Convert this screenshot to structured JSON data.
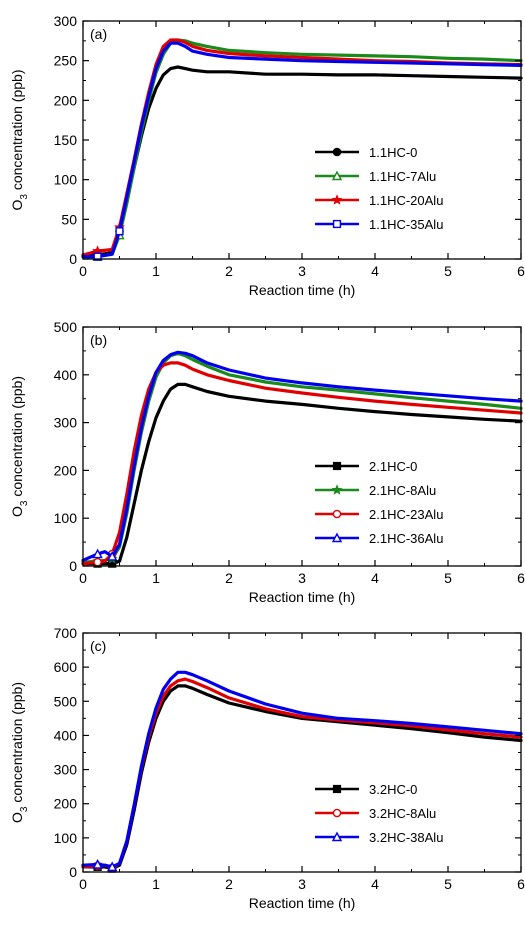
{
  "chart_data": [
    {
      "type": "line",
      "panel_label": "(a)",
      "xlabel": "Reaction time (h)",
      "ylabel_main": "O",
      "ylabel_sub": "3",
      "ylabel_rest": " concentration (ppb)",
      "xlim": [
        0,
        6
      ],
      "ylim": [
        0,
        300
      ],
      "xticks": [
        "0",
        "1",
        "2",
        "3",
        "4",
        "5",
        "6"
      ],
      "yticks": [
        "0",
        "50",
        "100",
        "150",
        "200",
        "250",
        "300"
      ],
      "legend_position": "right-middle",
      "grid": false,
      "x": [
        0,
        0.2,
        0.4,
        0.5,
        0.6,
        0.7,
        0.8,
        0.9,
        1.0,
        1.1,
        1.2,
        1.3,
        1.4,
        1.5,
        1.7,
        2.0,
        2.5,
        3.0,
        3.5,
        4.0,
        4.5,
        5.0,
        5.5,
        6.0
      ],
      "series": [
        {
          "name": "1.1HC-0",
          "color": "#000000",
          "marker": "circle",
          "values": [
            5,
            5,
            8,
            35,
            75,
            115,
            155,
            190,
            215,
            232,
            240,
            242,
            240,
            238,
            236,
            236,
            233,
            233,
            232,
            232,
            231,
            230,
            229,
            228
          ]
        },
        {
          "name": "1.1HC-7Alu",
          "color": "#1a8a1a",
          "marker": "triangle",
          "values": [
            3,
            3,
            6,
            30,
            70,
            115,
            160,
            200,
            235,
            258,
            272,
            276,
            275,
            272,
            268,
            263,
            260,
            258,
            257,
            256,
            255,
            253,
            252,
            250
          ]
        },
        {
          "name": "1.1HC-20Alu",
          "color": "#e00000",
          "marker": "star",
          "values": [
            5,
            10,
            12,
            40,
            82,
            125,
            170,
            210,
            245,
            268,
            276,
            276,
            273,
            268,
            263,
            259,
            256,
            254,
            252,
            250,
            249,
            247,
            246,
            245
          ]
        },
        {
          "name": "1.1HC-35Alu",
          "color": "#0000ee",
          "marker": "square",
          "values": [
            3,
            3,
            6,
            35,
            78,
            122,
            167,
            205,
            240,
            262,
            272,
            272,
            268,
            262,
            258,
            254,
            252,
            250,
            249,
            248,
            247,
            246,
            245,
            244
          ]
        }
      ]
    },
    {
      "type": "line",
      "panel_label": "(b)",
      "xlabel": "Reaction time (h)",
      "ylabel_main": "O",
      "ylabel_sub": "3",
      "ylabel_rest": " concentration (ppb)",
      "xlim": [
        0,
        6
      ],
      "ylim": [
        0,
        500
      ],
      "xticks": [
        "0",
        "1",
        "2",
        "3",
        "4",
        "5",
        "6"
      ],
      "yticks": [
        "0",
        "100",
        "200",
        "300",
        "400",
        "500"
      ],
      "legend_position": "right-bottom",
      "grid": false,
      "x": [
        0,
        0.2,
        0.3,
        0.4,
        0.5,
        0.6,
        0.7,
        0.8,
        0.9,
        1.0,
        1.1,
        1.2,
        1.3,
        1.4,
        1.5,
        1.7,
        2.0,
        2.5,
        3.0,
        3.5,
        4.0,
        4.5,
        5.0,
        5.5,
        6.0
      ],
      "series": [
        {
          "name": "2.1HC-0",
          "color": "#000000",
          "marker": "square",
          "values": [
            5,
            5,
            5,
            5,
            10,
            60,
            130,
            200,
            260,
            310,
            345,
            370,
            380,
            380,
            375,
            365,
            355,
            345,
            338,
            330,
            323,
            317,
            312,
            307,
            303
          ]
        },
        {
          "name": "2.1HC-8Alu",
          "color": "#1a8a1a",
          "marker": "star",
          "values": [
            8,
            10,
            12,
            15,
            40,
            110,
            200,
            280,
            345,
            395,
            425,
            440,
            445,
            440,
            432,
            418,
            400,
            385,
            375,
            368,
            360,
            352,
            345,
            338,
            330
          ]
        },
        {
          "name": "2.1HC-23Alu",
          "color": "#e00000",
          "marker": "circle",
          "values": [
            5,
            8,
            10,
            25,
            70,
            150,
            240,
            315,
            370,
            405,
            420,
            425,
            425,
            420,
            412,
            400,
            388,
            372,
            362,
            353,
            345,
            338,
            332,
            326,
            320
          ]
        },
        {
          "name": "2.1HC-36Alu",
          "color": "#0000ee",
          "marker": "triangle",
          "values": [
            12,
            25,
            30,
            20,
            45,
            120,
            210,
            290,
            355,
            405,
            430,
            442,
            447,
            445,
            440,
            425,
            410,
            393,
            383,
            375,
            368,
            362,
            356,
            350,
            345
          ]
        }
      ]
    },
    {
      "type": "line",
      "panel_label": "(c)",
      "xlabel": "Reaction time (h)",
      "ylabel_main": "O",
      "ylabel_sub": "3",
      "ylabel_rest": " concentration (ppb)",
      "xlim": [
        0,
        6
      ],
      "ylim": [
        0,
        700
      ],
      "xticks": [
        "0",
        "1",
        "2",
        "3",
        "4",
        "5",
        "6"
      ],
      "yticks": [
        "0",
        "100",
        "200",
        "300",
        "400",
        "500",
        "600",
        "700"
      ],
      "legend_position": "right-bottom",
      "grid": false,
      "x": [
        0,
        0.2,
        0.3,
        0.4,
        0.5,
        0.6,
        0.7,
        0.8,
        0.9,
        1.0,
        1.1,
        1.2,
        1.3,
        1.4,
        1.5,
        1.7,
        2.0,
        2.5,
        3.0,
        3.5,
        4.0,
        4.5,
        5.0,
        5.5,
        6.0
      ],
      "series": [
        {
          "name": "3.2HC-0",
          "color": "#000000",
          "marker": "square",
          "values": [
            15,
            15,
            15,
            10,
            20,
            80,
            180,
            290,
            380,
            450,
            500,
            530,
            545,
            545,
            538,
            520,
            495,
            470,
            450,
            440,
            430,
            420,
            408,
            395,
            385
          ]
        },
        {
          "name": "3.2HC-8Alu",
          "color": "#e00000",
          "marker": "circle",
          "values": [
            15,
            18,
            20,
            12,
            25,
            90,
            195,
            305,
            395,
            465,
            515,
            545,
            560,
            565,
            558,
            540,
            510,
            478,
            455,
            445,
            437,
            428,
            416,
            405,
            395
          ]
        },
        {
          "name": "3.2HC-38Alu",
          "color": "#0000ee",
          "marker": "triangle",
          "values": [
            20,
            22,
            20,
            15,
            25,
            90,
            195,
            310,
            405,
            480,
            535,
            565,
            585,
            585,
            578,
            560,
            530,
            492,
            465,
            450,
            443,
            435,
            425,
            415,
            405
          ]
        }
      ]
    }
  ]
}
